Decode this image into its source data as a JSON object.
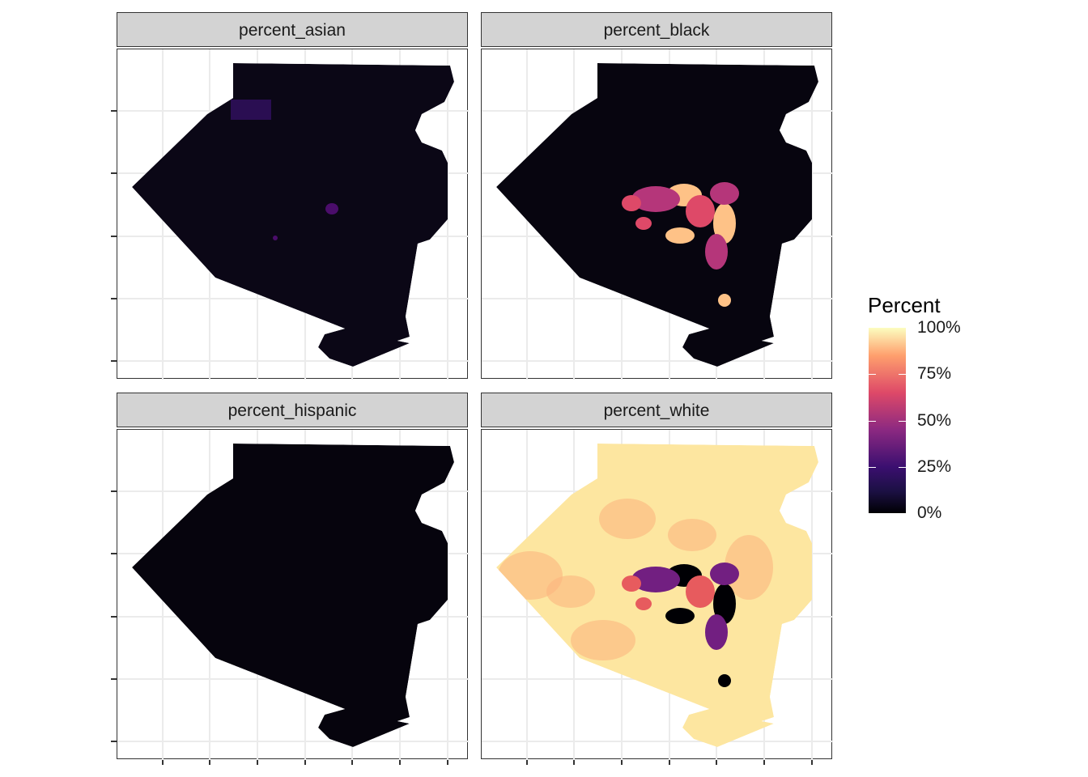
{
  "facets": [
    {
      "label": "percent_asian",
      "base_color": "#0b0716",
      "hotspot": "#4b0d6b"
    },
    {
      "label": "percent_black",
      "base_color": "#07050f",
      "hotspot": "#fb8761"
    },
    {
      "label": "percent_hispanic",
      "base_color": "#06040d",
      "hotspot": "#1a0b33"
    },
    {
      "label": "percent_white",
      "base_color": "#fde6a0",
      "hotspot": "#000004"
    }
  ],
  "legend": {
    "title": "Percent",
    "ticks": [
      "100%",
      "75%",
      "50%",
      "25%",
      "0%"
    ],
    "tick_values": [
      100,
      75,
      50,
      25,
      0
    ],
    "palette": "magma",
    "colors": [
      "#000004",
      "#3b0f70",
      "#8c2981",
      "#de4968",
      "#fe9f6d",
      "#fcfdbf"
    ]
  }
}
